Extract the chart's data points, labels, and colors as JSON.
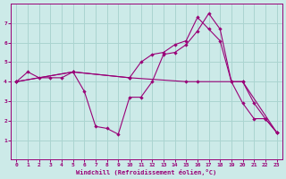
{
  "xlabel": "Windchill (Refroidissement éolien,°C)",
  "background_color": "#cceae8",
  "grid_color": "#aad4d0",
  "line_color": "#990077",
  "xlim": [
    -0.5,
    23.5
  ],
  "ylim": [
    0,
    8
  ],
  "xticks": [
    0,
    1,
    2,
    3,
    4,
    5,
    6,
    7,
    8,
    9,
    10,
    11,
    12,
    13,
    14,
    15,
    16,
    17,
    18,
    19,
    20,
    21,
    22,
    23
  ],
  "yticks": [
    1,
    2,
    3,
    4,
    5,
    6,
    7
  ],
  "series1": [
    [
      0,
      4.0
    ],
    [
      1,
      4.5
    ],
    [
      2,
      4.2
    ],
    [
      3,
      4.2
    ],
    [
      4,
      4.2
    ],
    [
      5,
      4.5
    ],
    [
      6,
      3.5
    ],
    [
      7,
      1.7
    ],
    [
      8,
      1.6
    ],
    [
      9,
      1.3
    ],
    [
      10,
      3.2
    ],
    [
      11,
      3.2
    ],
    [
      12,
      4.0
    ],
    [
      13,
      5.4
    ],
    [
      14,
      5.5
    ],
    [
      15,
      5.9
    ],
    [
      16,
      6.6
    ],
    [
      17,
      7.5
    ],
    [
      18,
      6.7
    ],
    [
      19,
      4.0
    ],
    [
      20,
      2.9
    ],
    [
      21,
      2.1
    ],
    [
      22,
      2.1
    ],
    [
      23,
      1.4
    ]
  ],
  "series2": [
    [
      0,
      4.0
    ],
    [
      5,
      4.5
    ],
    [
      10,
      4.2
    ],
    [
      11,
      5.0
    ],
    [
      12,
      5.4
    ],
    [
      13,
      5.5
    ],
    [
      14,
      5.9
    ],
    [
      15,
      6.1
    ],
    [
      16,
      7.3
    ],
    [
      17,
      6.7
    ],
    [
      18,
      6.1
    ],
    [
      19,
      4.0
    ],
    [
      20,
      4.0
    ],
    [
      23,
      1.4
    ]
  ],
  "series3": [
    [
      0,
      4.0
    ],
    [
      5,
      4.5
    ],
    [
      10,
      4.2
    ],
    [
      15,
      4.0
    ],
    [
      16,
      4.0
    ],
    [
      20,
      4.0
    ],
    [
      21,
      2.9
    ],
    [
      22,
      2.1
    ],
    [
      23,
      1.4
    ]
  ]
}
